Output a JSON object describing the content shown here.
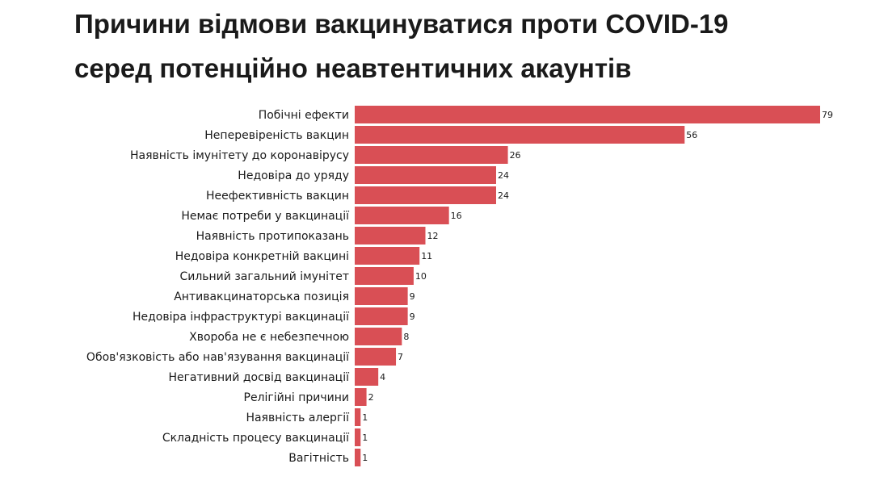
{
  "title_lines": [
    "Причини відмови вакцинуватися проти COVID-19",
    "серед потенційно неавтентичних акаунтів"
  ],
  "colors": {
    "bar": "#d94f55",
    "text": "#1a1a1a"
  },
  "chart_data": {
    "type": "bar",
    "orientation": "horizontal",
    "title": "Причини відмови вакцинуватися проти COVID-19 серед потенційно неавтентичних акаунтів",
    "xlabel": "",
    "ylabel": "",
    "grid": false,
    "xlim": [
      0,
      79
    ],
    "categories": [
      "Побічні ефекти",
      "Неперевіреність вакцин",
      "Наявність імунітету до коронавірусу",
      "Недовіра до уряду",
      "Неефективність вакцин",
      "Немає потреби у вакцинації",
      "Наявність протипоказань",
      "Недовіра конкретній вакцині",
      "Сильний загальний імунітет",
      "Антивакцинаторська позиція",
      "Недовіра інфраструктурі вакцинації",
      "Хвороба не є небезпечною",
      "Обов'язковість або нав'язування вакцинації",
      "Негативний досвід вакцинації",
      "Релігійні причини",
      "Наявність алергії",
      "Складність процесу вакцинації",
      "Вагітність"
    ],
    "values": [
      79,
      56,
      26,
      24,
      24,
      16,
      12,
      11,
      10,
      9,
      9,
      8,
      7,
      4,
      2,
      1,
      1,
      1
    ]
  }
}
